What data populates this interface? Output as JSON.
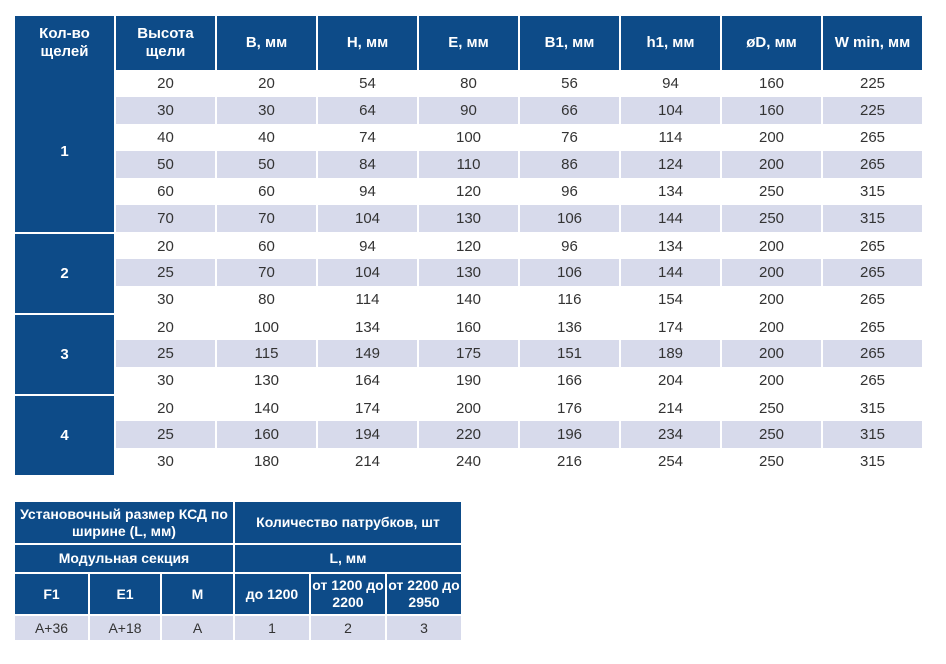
{
  "main_table": {
    "headers": [
      "Кол-во щелей",
      "Высота щели",
      "B, мм",
      "H, мм",
      "E, мм",
      "B1, мм",
      "h1, мм",
      "øD, мм",
      "W min, мм"
    ],
    "groups": [
      {
        "count": "1",
        "rows": [
          [
            "20",
            "20",
            "54",
            "80",
            "56",
            "94",
            "160",
            "225"
          ],
          [
            "30",
            "30",
            "64",
            "90",
            "66",
            "104",
            "160",
            "225"
          ],
          [
            "40",
            "40",
            "74",
            "100",
            "76",
            "114",
            "200",
            "265"
          ],
          [
            "50",
            "50",
            "84",
            "110",
            "86",
            "124",
            "200",
            "265"
          ],
          [
            "60",
            "60",
            "94",
            "120",
            "96",
            "134",
            "250",
            "315"
          ],
          [
            "70",
            "70",
            "104",
            "130",
            "106",
            "144",
            "250",
            "315"
          ]
        ]
      },
      {
        "count": "2",
        "rows": [
          [
            "20",
            "60",
            "94",
            "120",
            "96",
            "134",
            "200",
            "265"
          ],
          [
            "25",
            "70",
            "104",
            "130",
            "106",
            "144",
            "200",
            "265"
          ],
          [
            "30",
            "80",
            "114",
            "140",
            "116",
            "154",
            "200",
            "265"
          ]
        ]
      },
      {
        "count": "3",
        "rows": [
          [
            "20",
            "100",
            "134",
            "160",
            "136",
            "174",
            "200",
            "265"
          ],
          [
            "25",
            "115",
            "149",
            "175",
            "151",
            "189",
            "200",
            "265"
          ],
          [
            "30",
            "130",
            "164",
            "190",
            "166",
            "204",
            "200",
            "265"
          ]
        ]
      },
      {
        "count": "4",
        "rows": [
          [
            "20",
            "140",
            "174",
            "200",
            "176",
            "214",
            "250",
            "315"
          ],
          [
            "25",
            "160",
            "194",
            "220",
            "196",
            "234",
            "250",
            "315"
          ],
          [
            "30",
            "180",
            "214",
            "240",
            "216",
            "254",
            "250",
            "315"
          ]
        ]
      }
    ]
  },
  "bottom_table": {
    "header_left": "Установочный размер КСД по ширине (L, мм)",
    "header_right": "Количество патрубков, шт",
    "subheader_left": "Модульная секция",
    "subheader_right": "L, мм",
    "columns": [
      "F1",
      "E1",
      "M",
      "до 1200",
      "от 1200 до 2200",
      "от 2200 до 2950"
    ],
    "values": [
      "А+36",
      "А+18",
      "А",
      "1",
      "2",
      "3"
    ]
  }
}
